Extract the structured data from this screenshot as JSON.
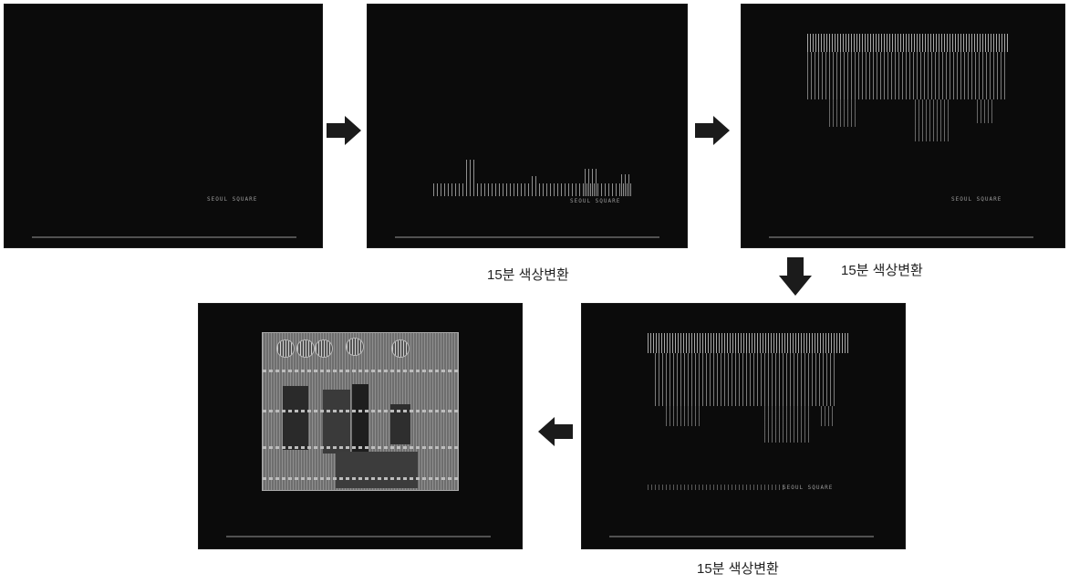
{
  "diagram": {
    "panels": [
      {
        "id": "panel-1",
        "tag": "SEOUL SQUARE"
      },
      {
        "id": "panel-2",
        "tag": "SEOUL SQUARE"
      },
      {
        "id": "panel-3",
        "tag": "SEOUL SQUARE"
      },
      {
        "id": "panel-4",
        "tag": "SEOUL SQUARE"
      },
      {
        "id": "panel-5",
        "tag": ""
      }
    ],
    "captions": [
      {
        "text": "15분 색상변환"
      },
      {
        "text": "15분 색상변환"
      },
      {
        "text": "15분 색상변환"
      }
    ],
    "arrows": [
      "arrow-right",
      "arrow-right",
      "arrow-down",
      "arrow-left"
    ]
  }
}
